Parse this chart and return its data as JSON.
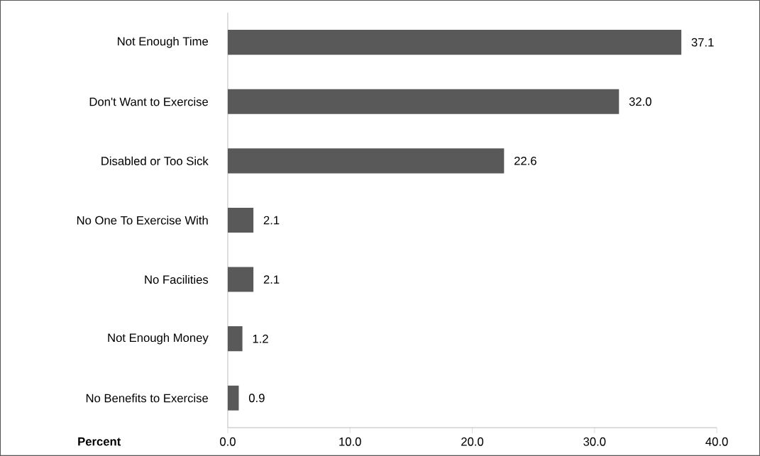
{
  "chart_data": {
    "type": "bar",
    "orientation": "horizontal",
    "xlabel": "Percent",
    "categories": [
      "Not Enough Time",
      "Don't Want to Exercise",
      "Disabled or Too Sick",
      "No One To Exercise With",
      "No Facilities",
      "Not Enough Money",
      "No Benefits to Exercise"
    ],
    "values": [
      37.1,
      32.0,
      22.6,
      2.1,
      2.1,
      1.2,
      0.9
    ],
    "color": "#595959",
    "xlim": [
      0,
      40
    ],
    "xticks": [
      {
        "value": 0,
        "label": "0.0"
      },
      {
        "value": 10,
        "label": "10.0"
      },
      {
        "value": 20,
        "label": "20.0"
      },
      {
        "value": 30,
        "label": "30.0"
      },
      {
        "value": 40,
        "label": "40.0"
      }
    ],
    "value_labels": [
      "37.1",
      "32.0",
      "22.6",
      "2.1",
      "2.1",
      "1.2",
      "0.9"
    ]
  }
}
